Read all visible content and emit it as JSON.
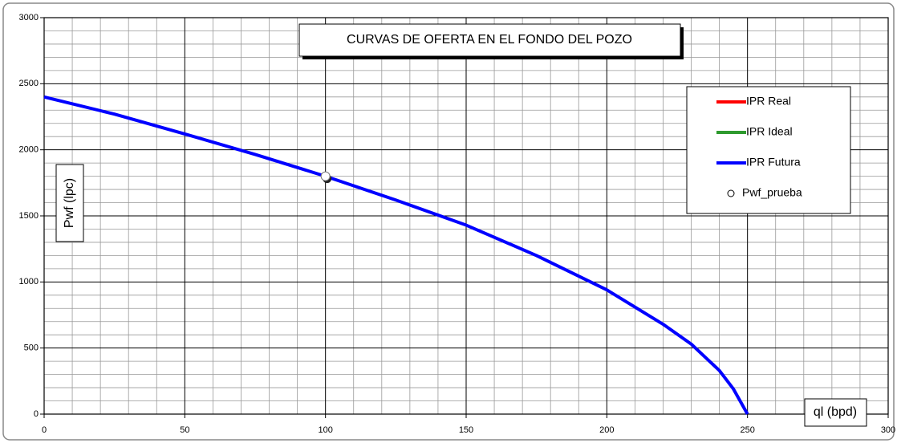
{
  "chart_data": {
    "type": "line",
    "title": "CURVAS DE OFERTA  EN EL FONDO DEL POZO",
    "xlabel": "ql (bpd)",
    "ylabel": "Pwf (lpc)",
    "x": [
      0,
      25,
      50,
      75,
      100,
      125,
      150,
      175,
      200,
      220,
      230,
      240,
      245,
      250
    ],
    "series": [
      {
        "name": "IPR Real",
        "color": "#ff0000"
      },
      {
        "name": "IPR Ideal",
        "color": "#2e9a2e"
      },
      {
        "name": "IPR Futura",
        "color": "#0000ff",
        "values": [
          2400,
          2270,
          2120,
          1965,
          1800,
          1620,
          1430,
          1200,
          940,
          680,
          530,
          330,
          190,
          0
        ]
      }
    ],
    "points": {
      "name": "Pwf_prueba",
      "x": [
        100
      ],
      "values": [
        1800
      ]
    },
    "xlim": [
      0,
      300
    ],
    "xticks": [
      0,
      50,
      100,
      150,
      200,
      250,
      300
    ],
    "ylim": [
      0,
      3000
    ],
    "yticks": [
      0,
      500,
      1000,
      1500,
      2000,
      2500,
      3000
    ],
    "grid": true,
    "legend": "upper right"
  }
}
